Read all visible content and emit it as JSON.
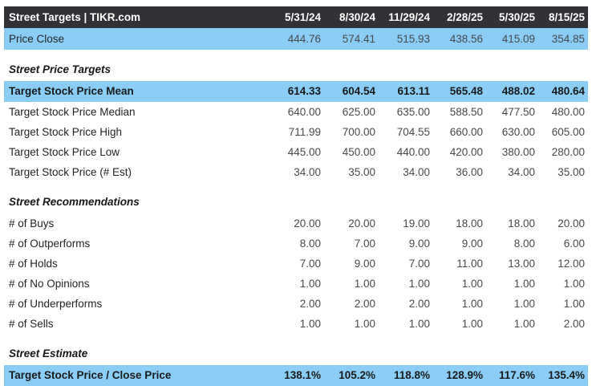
{
  "colors": {
    "header_bg": "#313236",
    "highlight_bg": "#8bcdf5",
    "text_white": "#ffffff",
    "text_dark": "#232427"
  },
  "chart_data": {
    "type": "table",
    "title": "Street Targets | TIKR.com",
    "columns": [
      "5/31/24",
      "8/30/24",
      "11/29/24",
      "2/28/25",
      "5/30/25",
      "8/15/25"
    ],
    "sections": [
      {
        "title": "",
        "rows": [
          {
            "label": "Price Close",
            "values": [
              "444.76",
              "574.41",
              "515.93",
              "438.56",
              "415.09",
              "354.85"
            ],
            "highlight": true,
            "bold": false
          }
        ]
      },
      {
        "title": "Street Price Targets",
        "rows": [
          {
            "label": "Target Stock Price Mean",
            "values": [
              "614.33",
              "604.54",
              "613.11",
              "565.48",
              "488.02",
              "480.64"
            ],
            "highlight": true,
            "bold": true
          },
          {
            "label": "Target Stock Price Median",
            "values": [
              "640.00",
              "625.00",
              "635.00",
              "588.50",
              "477.50",
              "480.00"
            ],
            "highlight": false,
            "bold": false
          },
          {
            "label": "Target Stock Price High",
            "values": [
              "711.99",
              "700.00",
              "704.55",
              "660.00",
              "630.00",
              "605.00"
            ],
            "highlight": false,
            "bold": false
          },
          {
            "label": "Target Stock Price Low",
            "values": [
              "445.00",
              "450.00",
              "440.00",
              "420.00",
              "380.00",
              "280.00"
            ],
            "highlight": false,
            "bold": false
          },
          {
            "label": "Target Stock Price (# Est)",
            "values": [
              "34.00",
              "35.00",
              "34.00",
              "36.00",
              "34.00",
              "35.00"
            ],
            "highlight": false,
            "bold": false
          }
        ]
      },
      {
        "title": "Street Recommendations",
        "rows": [
          {
            "label": "# of Buys",
            "values": [
              "20.00",
              "20.00",
              "19.00",
              "18.00",
              "18.00",
              "20.00"
            ],
            "highlight": false,
            "bold": false
          },
          {
            "label": "# of Outperforms",
            "values": [
              "8.00",
              "7.00",
              "9.00",
              "9.00",
              "8.00",
              "6.00"
            ],
            "highlight": false,
            "bold": false
          },
          {
            "label": "# of Holds",
            "values": [
              "7.00",
              "9.00",
              "7.00",
              "11.00",
              "13.00",
              "12.00"
            ],
            "highlight": false,
            "bold": false
          },
          {
            "label": "# of No Opinions",
            "values": [
              "1.00",
              "1.00",
              "1.00",
              "1.00",
              "1.00",
              "1.00"
            ],
            "highlight": false,
            "bold": false
          },
          {
            "label": "# of Underperforms",
            "values": [
              "2.00",
              "2.00",
              "2.00",
              "1.00",
              "1.00",
              "1.00"
            ],
            "highlight": false,
            "bold": false
          },
          {
            "label": "# of Sells",
            "values": [
              "1.00",
              "1.00",
              "1.00",
              "1.00",
              "1.00",
              "2.00"
            ],
            "highlight": false,
            "bold": false
          }
        ]
      },
      {
        "title": "Street Estimate",
        "rows": [
          {
            "label": "Target Stock Price / Close Price",
            "values": [
              "138.1%",
              "105.2%",
              "118.8%",
              "128.9%",
              "117.6%",
              "135.4%"
            ],
            "highlight": true,
            "bold": true
          }
        ]
      }
    ]
  }
}
